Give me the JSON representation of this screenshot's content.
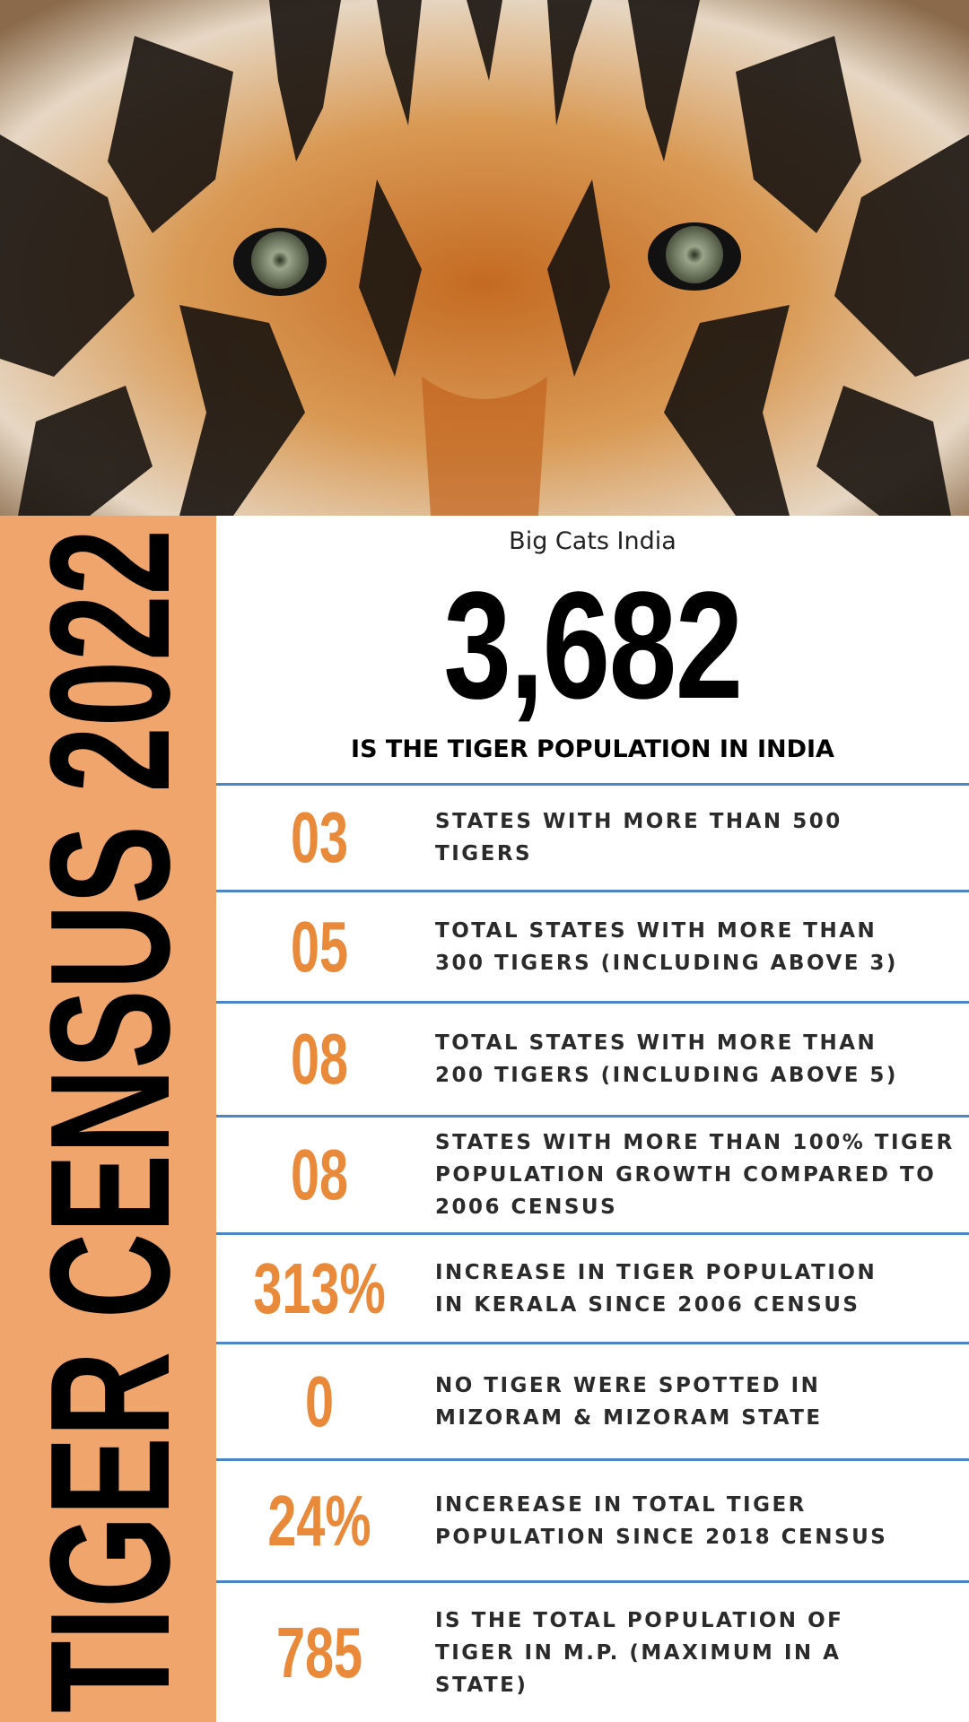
{
  "side_title": "TIGER CENSUS 2022",
  "logo": "Big Cats India",
  "headline": {
    "number": "3,682",
    "caption": "IS THE TIGER POPULATION IN INDIA"
  },
  "rows": [
    {
      "number": "03",
      "lines": [
        "STATES WITH MORE THAN 500",
        "TIGERS"
      ]
    },
    {
      "number": "05",
      "lines": [
        "TOTAL STATES WITH MORE THAN",
        "300 TIGERS (INCLUDING ABOVE 3)"
      ]
    },
    {
      "number": "08",
      "lines": [
        "TOTAL STATES WITH MORE THAN",
        "200 TIGERS (INCLUDING ABOVE 5)"
      ]
    },
    {
      "number": "08",
      "lines": [
        "STATES WITH MORE THAN 100% TIGER",
        "POPULATION GROWTH COMPARED TO",
        "2006 CENSUS"
      ]
    },
    {
      "number": "313%",
      "lines": [
        "INCREASE IN TIGER POPULATION",
        "IN KERALA SINCE 2006 CENSUS"
      ]
    },
    {
      "number": "0",
      "lines": [
        "NO TIGER WERE SPOTTED IN",
        "MIZORAM & MIZORAM STATE"
      ]
    },
    {
      "number": "24%",
      "lines": [
        "INCEREASE IN TOTAL TIGER",
        "POPULATION SINCE 2018 CENSUS"
      ]
    },
    {
      "number": "785",
      "lines": [
        "IS THE TOTAL POPULATION OF",
        "TIGER IN M.P. (MAXIMUM IN A",
        "STATE)"
      ]
    }
  ]
}
